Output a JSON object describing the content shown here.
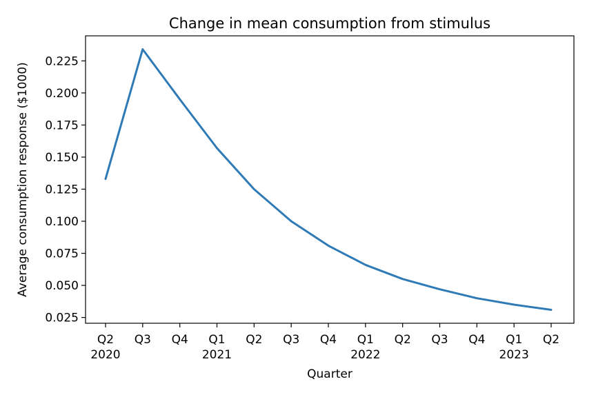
{
  "chart_data": {
    "type": "line",
    "title": "Change in mean consumption from stimulus",
    "xlabel": "Quarter",
    "ylabel": "Average consumption response ($1000)",
    "x_ticks": [
      {
        "quarter": "Q2",
        "year": "2020"
      },
      {
        "quarter": "Q3",
        "year": ""
      },
      {
        "quarter": "Q4",
        "year": ""
      },
      {
        "quarter": "Q1",
        "year": "2021"
      },
      {
        "quarter": "Q2",
        "year": ""
      },
      {
        "quarter": "Q3",
        "year": ""
      },
      {
        "quarter": "Q4",
        "year": ""
      },
      {
        "quarter": "Q1",
        "year": "2022"
      },
      {
        "quarter": "Q2",
        "year": ""
      },
      {
        "quarter": "Q3",
        "year": ""
      },
      {
        "quarter": "Q4",
        "year": ""
      },
      {
        "quarter": "Q1",
        "year": "2023"
      },
      {
        "quarter": "Q2",
        "year": ""
      }
    ],
    "y_ticks": [
      "0.025",
      "0.050",
      "0.075",
      "0.100",
      "0.125",
      "0.150",
      "0.175",
      "0.200",
      "0.225"
    ],
    "values": [
      0.133,
      0.234,
      0.195,
      0.157,
      0.125,
      0.1,
      0.081,
      0.066,
      0.055,
      0.047,
      0.04,
      0.035,
      0.031
    ],
    "ylim": [
      0.0205,
      0.2445
    ],
    "line_color": "#2e7ab6",
    "grid": false,
    "legend": "none"
  }
}
